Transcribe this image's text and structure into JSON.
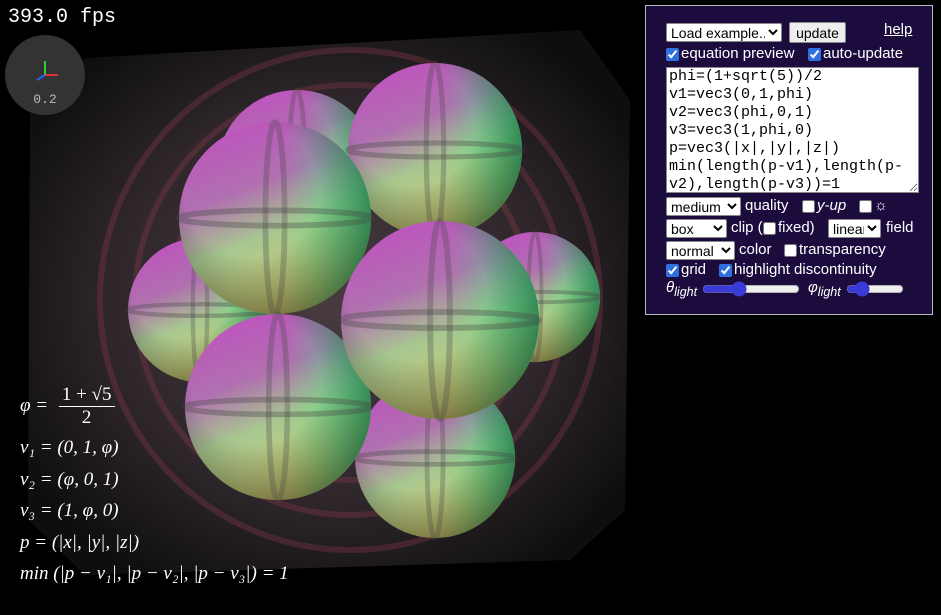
{
  "fps": "393.0 fps",
  "gizmo_scale": "0.2",
  "equations": {
    "phi": {
      "lhs": "φ =",
      "numerator": "1 + √5",
      "denominator": "2"
    },
    "lines": [
      "v₁ = (0, 1, φ)",
      "v₂ = (φ, 0, 1)",
      "v₃ = (1, φ, 0)",
      "p = (|x|, |y|, |z|)",
      "min (|p − v₁|, |p − v₂|, |p − v₃|) = 1"
    ]
  },
  "panel": {
    "example_select": "Load example...",
    "update_button": "update",
    "help_link": "help",
    "equation_preview": {
      "label": "equation preview",
      "checked": true
    },
    "auto_update": {
      "label": "auto-update",
      "checked": true
    },
    "code": "phi=(1+sqrt(5))/2\nv1=vec3(0,1,phi)\nv2=vec3(phi,0,1)\nv3=vec3(1,phi,0)\np=vec3(|x|,|y|,|z|)\nmin(length(p-v1),length(p-v2),length(p-v3))=1",
    "quality": {
      "selected": "medium",
      "label": "quality"
    },
    "y_up": {
      "label": "y-up",
      "checked": false
    },
    "light_toggle": {
      "label": "☼",
      "checked": false
    },
    "clip": {
      "selected": "box",
      "label": "clip ("
    },
    "fixed": {
      "label": "fixed)",
      "checked": false
    },
    "field": {
      "selected": "linear",
      "label": "field"
    },
    "color": {
      "selected": "normal",
      "label": "color"
    },
    "transparency": {
      "label": "transparency",
      "checked": false
    },
    "grid": {
      "label": "grid",
      "checked": true
    },
    "highlight_discontinuity": {
      "label": "highlight discontinuity",
      "checked": true
    },
    "theta_light": {
      "symbol": "θ",
      "sub": "light",
      "value": 35
    },
    "phi_light": {
      "symbol": "φ",
      "sub": "light",
      "value": 19
    }
  }
}
